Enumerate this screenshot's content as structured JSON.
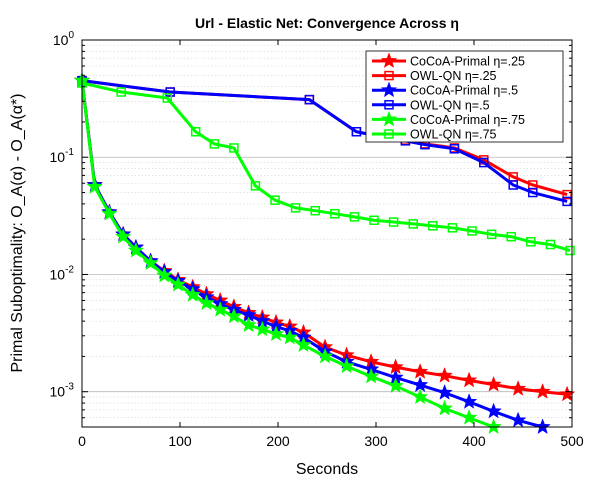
{
  "chart_data": {
    "type": "line",
    "title": "Url - Elastic Net: Convergence Across η",
    "xlabel": "Seconds",
    "ylabel": "Primal Suboptimality: O_A(α) - O_A(α*)",
    "xlim": [
      0,
      500
    ],
    "ylim": [
      0.0005,
      1
    ],
    "yscale": "log",
    "grid": {
      "y_major": true,
      "y_minor": true,
      "x": false
    },
    "legend_position": "top-right",
    "x_ticks": [
      0,
      100,
      200,
      300,
      400,
      500
    ],
    "x_tick_labels": [
      "0",
      "100",
      "200",
      "300",
      "400",
      "500"
    ],
    "y_ticks": [
      1,
      0.1,
      0.01,
      0.001
    ],
    "y_tick_labels": [
      {
        "base": "10",
        "exp": "0"
      },
      {
        "base": "10",
        "exp": "-1"
      },
      {
        "base": "10",
        "exp": "-2"
      },
      {
        "base": "10",
        "exp": "-3"
      }
    ],
    "series": [
      {
        "name": "CoCoA-Primal η=.25",
        "color": "#ff0000",
        "marker": "star",
        "x": [
          0,
          13,
          28,
          42,
          55,
          70,
          84,
          98,
          113,
          127,
          141,
          155,
          170,
          184,
          198,
          212,
          226,
          248,
          270,
          295,
          320,
          345,
          370,
          395,
          420,
          445,
          470,
          495
        ],
        "y": [
          0.45,
          0.058,
          0.034,
          0.022,
          0.017,
          0.013,
          0.0107,
          0.009,
          0.0078,
          0.0068,
          0.006,
          0.0053,
          0.0047,
          0.0043,
          0.0039,
          0.0036,
          0.0032,
          0.0024,
          0.00205,
          0.0018,
          0.00162,
          0.00148,
          0.00137,
          0.00125,
          0.00115,
          0.00106,
          0.001,
          0.00095
        ]
      },
      {
        "name": "OWL-QN η=.25",
        "color": "#ff0000",
        "marker": "square",
        "x": [
          0,
          90,
          232,
          280,
          305,
          330,
          350,
          380,
          410,
          440,
          460,
          495
        ],
        "y": [
          0.45,
          0.36,
          0.31,
          0.165,
          0.15,
          0.14,
          0.13,
          0.12,
          0.095,
          0.068,
          0.058,
          0.048
        ]
      },
      {
        "name": "CoCoA-Primal η=.5",
        "color": "#0000ff",
        "marker": "star",
        "x": [
          0,
          13,
          28,
          42,
          55,
          70,
          84,
          98,
          113,
          127,
          141,
          155,
          170,
          184,
          198,
          212,
          226,
          248,
          270,
          295,
          320,
          345,
          370,
          395,
          420,
          445,
          470
        ],
        "y": [
          0.45,
          0.058,
          0.034,
          0.022,
          0.017,
          0.013,
          0.0105,
          0.0088,
          0.0075,
          0.0064,
          0.0056,
          0.005,
          0.0045,
          0.004,
          0.0036,
          0.0033,
          0.0029,
          0.0022,
          0.0018,
          0.00155,
          0.00132,
          0.00114,
          0.00098,
          0.00082,
          0.00068,
          0.00057,
          0.0005
        ]
      },
      {
        "name": "OWL-QN η=.5",
        "color": "#0000ff",
        "marker": "square",
        "x": [
          0,
          90,
          232,
          280,
          305,
          330,
          350,
          380,
          410,
          440,
          460,
          495
        ],
        "y": [
          0.45,
          0.36,
          0.31,
          0.165,
          0.15,
          0.138,
          0.128,
          0.118,
          0.09,
          0.058,
          0.05,
          0.042
        ]
      },
      {
        "name": "CoCoA-Primal η=.75",
        "color": "#00ff00",
        "marker": "star",
        "x": [
          0,
          13,
          28,
          42,
          55,
          70,
          84,
          98,
          113,
          127,
          141,
          155,
          170,
          184,
          198,
          212,
          226,
          248,
          270,
          295,
          320,
          345,
          370,
          395,
          420
        ],
        "y": [
          0.45,
          0.056,
          0.033,
          0.021,
          0.016,
          0.0125,
          0.0098,
          0.0082,
          0.0067,
          0.0057,
          0.005,
          0.0044,
          0.0037,
          0.0034,
          0.0031,
          0.0029,
          0.0025,
          0.002,
          0.00165,
          0.00135,
          0.00112,
          0.0009,
          0.00072,
          0.0006,
          0.0005
        ]
      },
      {
        "name": "OWL-QN η=.75",
        "color": "#00ff00",
        "marker": "square",
        "x": [
          0,
          40,
          87,
          116,
          135,
          155,
          177,
          197,
          218,
          238,
          258,
          278,
          298,
          318,
          338,
          358,
          378,
          398,
          418,
          438,
          458,
          478,
          498
        ],
        "y": [
          0.43,
          0.36,
          0.32,
          0.165,
          0.13,
          0.12,
          0.057,
          0.043,
          0.037,
          0.035,
          0.033,
          0.031,
          0.029,
          0.028,
          0.027,
          0.026,
          0.025,
          0.0235,
          0.022,
          0.021,
          0.019,
          0.018,
          0.016
        ]
      }
    ]
  }
}
